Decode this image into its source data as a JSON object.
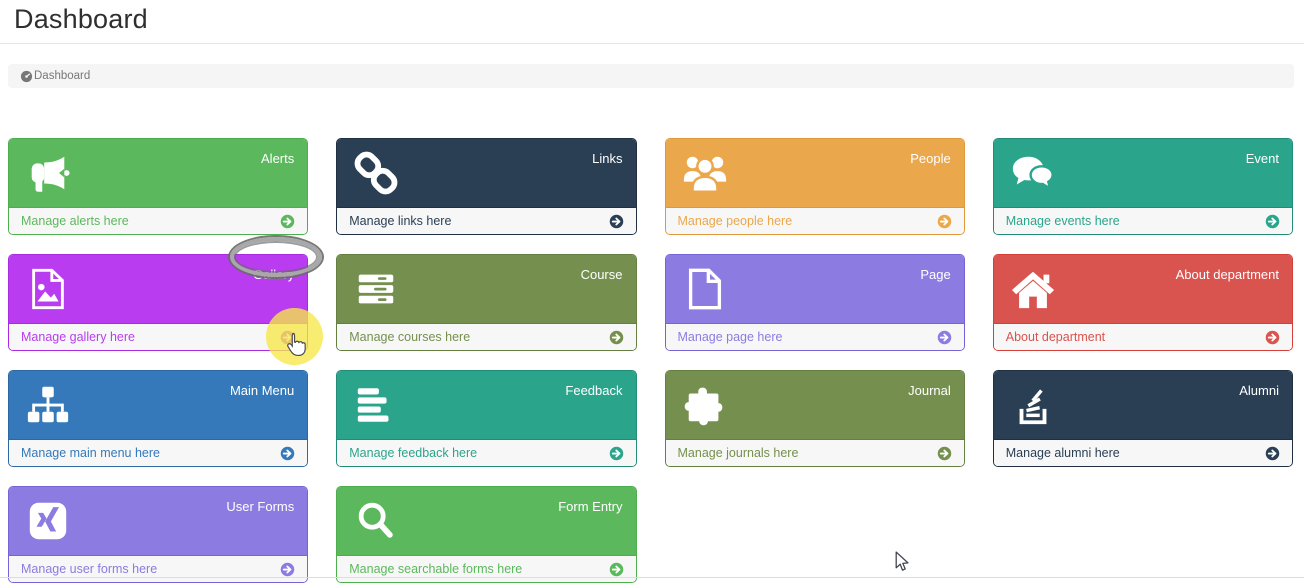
{
  "page": {
    "title": "Dashboard"
  },
  "breadcrumb": {
    "icon": "dashboard-gauge-icon",
    "label": "Dashboard"
  },
  "cards": [
    {
      "id": "alerts",
      "label": "Alerts",
      "footer": "Manage alerts here",
      "icon": "bullhorn-icon",
      "color": "#5cb85c",
      "border": "#4cae4c"
    },
    {
      "id": "links",
      "label": "Links",
      "footer": "Manage links here",
      "icon": "chain-links-icon",
      "color": "#2a3f54",
      "border": "#1f3042"
    },
    {
      "id": "people",
      "label": "People",
      "footer": "Manage people here",
      "icon": "users-icon",
      "color": "#eba74b",
      "border": "#e0983a"
    },
    {
      "id": "event",
      "label": "Event",
      "footer": "Manage events here",
      "icon": "comments-icon",
      "color": "#2aa58c",
      "border": "#238c77"
    },
    {
      "id": "gallery",
      "label": "Gallery",
      "footer": "Manage gallery here",
      "icon": "image-file-icon",
      "color": "#b93cf0",
      "border": "#a92ae0"
    },
    {
      "id": "course",
      "label": "Course",
      "footer": "Manage courses here",
      "icon": "server-icon",
      "color": "#75904e",
      "border": "#657e41"
    },
    {
      "id": "page",
      "label": "Page",
      "footer": "Manage page here",
      "icon": "file-outline-icon",
      "color": "#8c7be1",
      "border": "#7763d6"
    },
    {
      "id": "about-department",
      "label": "About department",
      "footer": "About department",
      "icon": "home-icon",
      "color": "#d9534f",
      "border": "#d43f3a"
    },
    {
      "id": "main-menu",
      "label": "Main Menu",
      "footer": "Manage main menu here",
      "icon": "sitemap-icon",
      "color": "#3579ba",
      "border": "#2d68a2"
    },
    {
      "id": "feedback",
      "label": "Feedback",
      "footer": "Manage feedback here",
      "icon": "align-left-icon",
      "color": "#2aa58c",
      "border": "#238c77"
    },
    {
      "id": "journal",
      "label": "Journal",
      "footer": "Manage journals here",
      "icon": "puzzle-piece-icon",
      "color": "#75904e",
      "border": "#657e41"
    },
    {
      "id": "alumni",
      "label": "Alumni",
      "footer": "Manage alumni here",
      "icon": "stack-overflow-icon",
      "color": "#2a3f54",
      "border": "#1f3042"
    },
    {
      "id": "user-forms",
      "label": "User Forms",
      "footer": "Manage user forms here",
      "icon": "xing-square-icon",
      "color": "#8c7be1",
      "border": "#7763d6"
    },
    {
      "id": "form-entry",
      "label": "Form Entry",
      "footer": "Manage searchable forms here",
      "icon": "search-icon",
      "color": "#5cb85c",
      "border": "#4cae4c"
    }
  ],
  "annotations": {
    "ellipse_highlight_target": "Gallery",
    "circle_highlight_target": "gallery-footer-arrow",
    "ellipse_color": "#a8a8a8",
    "circle_color": "#f6e848"
  }
}
